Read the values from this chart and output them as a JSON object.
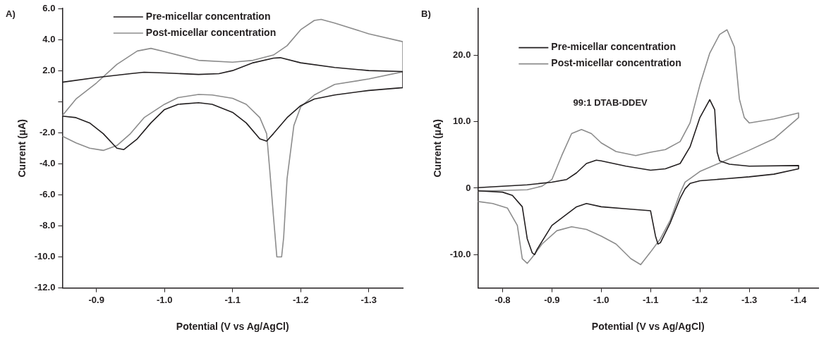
{
  "chart_data": [
    {
      "type": "line",
      "title": "A)",
      "xlabel": "Potential (V vs Ag/AgCl)",
      "ylabel": "Current (μA)",
      "xlim": [
        -0.85,
        -1.35
      ],
      "xticks": [
        -0.9,
        {
          "value": -1.0,
          "label": "-1.0"
        },
        -1.1,
        -1.2,
        -1.3
      ],
      "ylim": [
        -12,
        6
      ],
      "yticks": [
        {
          "value": -12,
          "label": "-12.0"
        },
        {
          "value": -10,
          "label": "-10.0"
        },
        {
          "value": -8,
          "label": "-8.0"
        },
        {
          "value": -6,
          "label": "-6.0"
        },
        {
          "value": -4,
          "label": "-4.0"
        },
        {
          "value": -2,
          "label": "-2.0"
        },
        {
          "value": 0,
          "label": null
        },
        {
          "value": 2,
          "label": "2.0"
        },
        {
          "value": 4,
          "label": "4.0"
        },
        {
          "value": 6,
          "label": "6.0"
        }
      ],
      "grid": false,
      "legend": "top",
      "marker": "none",
      "series": [
        {
          "name": "Pre-micellar concentration",
          "color": "#231f20",
          "x": [
            -0.85,
            -0.9,
            -0.95,
            -0.97,
            -1.0,
            -1.05,
            -1.08,
            -1.1,
            -1.13,
            -1.16,
            -1.17,
            -1.2,
            -1.25,
            -1.3,
            -1.35,
            -1.35,
            -1.3,
            -1.25,
            -1.22,
            -1.2,
            -1.18,
            -1.16,
            -1.15,
            -1.14,
            -1.12,
            -1.1,
            -1.07,
            -1.05,
            -1.02,
            -1.0,
            -0.98,
            -0.96,
            -0.94,
            -0.93,
            -0.91,
            -0.89,
            -0.87,
            -0.85
          ],
          "values": [
            1.25,
            1.55,
            1.8,
            1.89,
            1.85,
            1.75,
            1.8,
            2.0,
            2.5,
            2.8,
            2.83,
            2.5,
            2.2,
            2.0,
            1.94,
            0.9,
            0.72,
            0.43,
            0.17,
            -0.26,
            -1.03,
            -2.06,
            -2.54,
            -2.4,
            -1.37,
            -0.69,
            -0.17,
            -0.07,
            -0.17,
            -0.51,
            -1.37,
            -2.4,
            -3.09,
            -3.0,
            -2.06,
            -1.37,
            -1.03,
            -0.93
          ]
        },
        {
          "name": "Post-micellar concentration",
          "color": "#8c8c8c",
          "x": [
            -0.85,
            -0.87,
            -0.9,
            -0.93,
            -0.96,
            -0.98,
            -1.0,
            -1.05,
            -1.1,
            -1.13,
            -1.16,
            -1.18,
            -1.2,
            -1.22,
            -1.23,
            -1.25,
            -1.3,
            -1.35,
            -1.35,
            -1.3,
            -1.25,
            -1.22,
            -1.2,
            -1.19,
            -1.18,
            -1.175,
            -1.172,
            -1.165,
            -1.16,
            -1.155,
            -1.15,
            -1.14,
            -1.12,
            -1.1,
            -1.07,
            -1.05,
            -1.02,
            -1.0,
            -0.97,
            -0.95,
            -0.93,
            -0.91,
            -0.89,
            -0.87,
            -0.85
          ],
          "values": [
            -0.9,
            0.17,
            1.2,
            2.4,
            3.26,
            3.43,
            3.22,
            2.66,
            2.54,
            2.66,
            3.0,
            3.6,
            4.63,
            5.23,
            5.3,
            5.06,
            4.37,
            3.86,
            1.92,
            1.46,
            1.11,
            0.43,
            -0.34,
            -1.54,
            -4.97,
            -8.75,
            -10.0,
            -10.0,
            -7.38,
            -4.63,
            -2.06,
            -1.03,
            -0.17,
            0.21,
            0.43,
            0.46,
            0.26,
            -0.17,
            -1.03,
            -2.06,
            -2.83,
            -3.14,
            -3.0,
            -2.66,
            -2.23
          ]
        }
      ]
    },
    {
      "type": "line",
      "title": "B)",
      "xlabel": "Potential (V vs Ag/AgCl)",
      "ylabel": "Current (μA)",
      "annotations": [
        "99:1 DTAB-DDEV"
      ],
      "xlim": [
        -0.75,
        -1.44
      ],
      "xticks": [
        -0.8,
        -0.9,
        {
          "value": -1.0,
          "label": "-1.0"
        },
        -1.1,
        -1.2,
        -1.3,
        -1.4
      ],
      "ylim": [
        -15,
        27
      ],
      "yticks": [
        {
          "value": -10,
          "label": "-10.0"
        },
        0,
        {
          "value": 10,
          "label": "10.0"
        },
        {
          "value": 20,
          "label": "20.0"
        }
      ],
      "grid": false,
      "legend": "top left",
      "marker": "none",
      "series": [
        {
          "name": "Pre-micellar concentration",
          "color": "#231f20",
          "x": [
            -0.75,
            -0.85,
            -0.9,
            -0.93,
            -0.95,
            -0.97,
            -0.99,
            -1.0,
            -1.05,
            -1.1,
            -1.13,
            -1.16,
            -1.18,
            -1.2,
            -1.22,
            -1.23,
            -1.235,
            -1.24,
            -1.26,
            -1.3,
            -1.4,
            -1.4,
            -1.35,
            -1.3,
            -1.25,
            -1.2,
            -1.18,
            -1.17,
            -1.16,
            -1.14,
            -1.12,
            -1.115,
            -1.11,
            -1.1,
            -1.05,
            -1.0,
            -0.97,
            -0.95,
            -0.9,
            -0.87,
            -0.865,
            -0.86,
            -0.85,
            -0.84,
            -0.82,
            -0.8,
            -0.75
          ],
          "values": [
            0.08,
            0.5,
            0.9,
            1.3,
            2.3,
            3.7,
            4.2,
            4.1,
            3.3,
            2.7,
            2.9,
            3.7,
            6.2,
            10.6,
            13.3,
            11.8,
            5.4,
            4.1,
            3.6,
            3.3,
            3.4,
            2.9,
            2.1,
            1.7,
            1.4,
            1.1,
            0.7,
            -0.1,
            -1.5,
            -5.2,
            -8.2,
            -8.4,
            -7.2,
            -3.4,
            -3.1,
            -2.8,
            -2.3,
            -2.8,
            -5.6,
            -9.2,
            -10.0,
            -9.7,
            -7.6,
            -2.8,
            -1.1,
            -0.6,
            -0.4
          ]
        },
        {
          "name": "Post-micellar concentration",
          "color": "#8c8c8c",
          "x": [
            -0.75,
            -0.85,
            -0.88,
            -0.9,
            -0.92,
            -0.94,
            -0.96,
            -0.98,
            -1.0,
            -1.03,
            -1.07,
            -1.1,
            -1.13,
            -1.16,
            -1.18,
            -1.2,
            -1.22,
            -1.24,
            -1.255,
            -1.27,
            -1.28,
            -1.29,
            -1.3,
            -1.35,
            -1.4,
            -1.4,
            -1.35,
            -1.3,
            -1.25,
            -1.2,
            -1.17,
            -1.16,
            -1.14,
            -1.12,
            -1.1,
            -1.08,
            -1.06,
            -1.03,
            -1.0,
            -0.97,
            -0.94,
            -0.91,
            -0.88,
            -0.86,
            -0.85,
            -0.84,
            -0.83,
            -0.81,
            -0.78,
            -0.75
          ],
          "values": [
            -0.45,
            -0.25,
            0.3,
            1.3,
            4.9,
            8.2,
            8.8,
            8.2,
            6.8,
            5.5,
            4.9,
            5.4,
            5.8,
            7.0,
            9.8,
            15.5,
            20.3,
            23.1,
            23.8,
            21.2,
            13.4,
            10.6,
            9.8,
            10.4,
            11.3,
            10.6,
            7.4,
            5.7,
            4.1,
            2.5,
            0.9,
            -0.7,
            -4.8,
            -7.6,
            -9.6,
            -11.5,
            -10.6,
            -8.4,
            -7.2,
            -6.2,
            -5.8,
            -6.4,
            -8.4,
            -10.4,
            -11.3,
            -10.6,
            -5.6,
            -3.0,
            -2.3,
            -2.0
          ]
        }
      ]
    }
  ]
}
